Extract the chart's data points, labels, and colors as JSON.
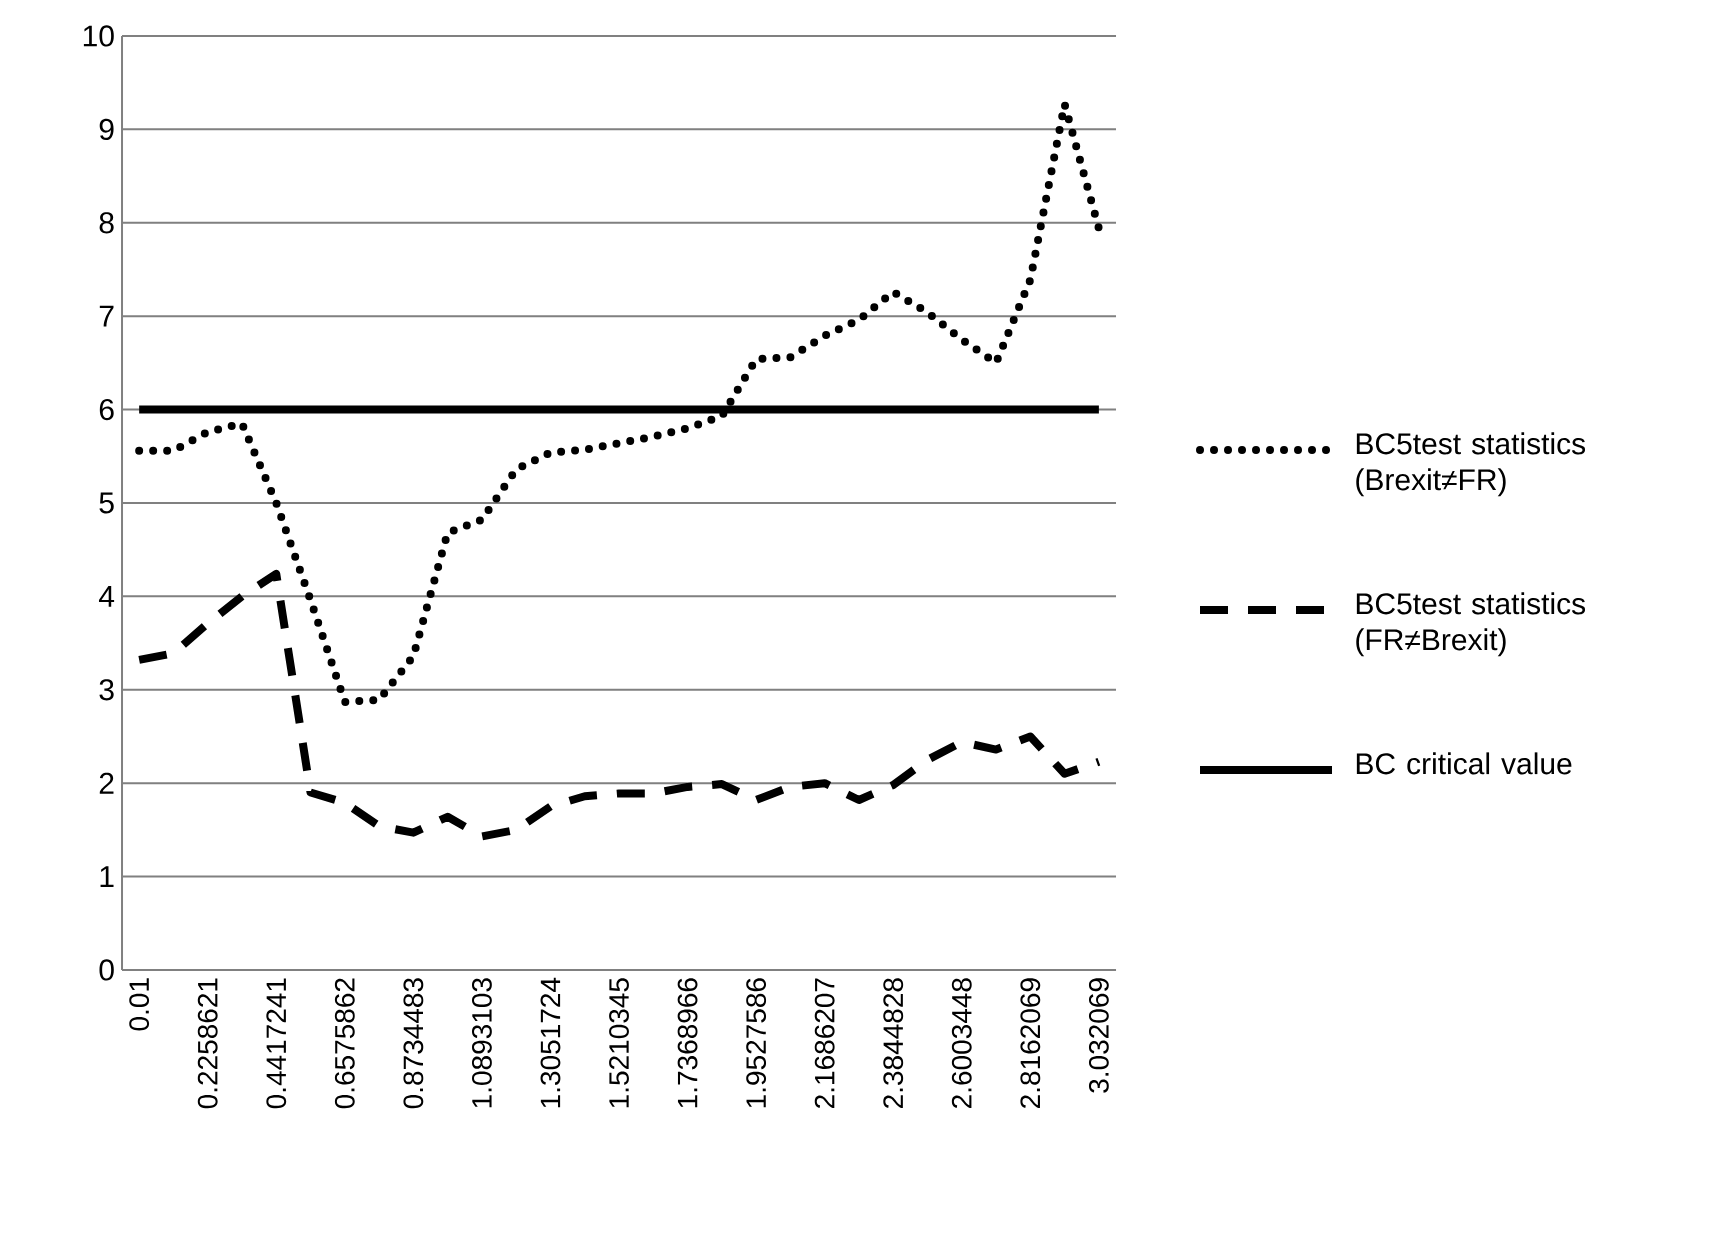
{
  "chart_data": {
    "type": "line",
    "categories": [
      "0.01",
      null,
      "0.2258621",
      null,
      "0.4417241",
      null,
      "0.6575862",
      null,
      "0.8734483",
      null,
      "1.0893103",
      null,
      "1.3051724",
      null,
      "1.5210345",
      null,
      "1.7368966",
      null,
      "1.9527586",
      null,
      "2.1686207",
      null,
      "2.3844828",
      null,
      "2.6003448",
      null,
      "2.8162069",
      null,
      "3.032069"
    ],
    "series": [
      {
        "name": "BC5test statistics (Brexit≠FR)",
        "color": "#000000",
        "line_style": "dotted",
        "values": [
          5.56,
          5.56,
          5.76,
          5.85,
          5.0,
          3.96,
          2.87,
          2.89,
          3.36,
          4.68,
          4.82,
          5.36,
          5.54,
          5.57,
          5.64,
          5.71,
          5.8,
          5.93,
          6.54,
          6.56,
          6.79,
          6.96,
          7.26,
          7.04,
          6.75,
          6.5,
          7.39,
          9.27,
          7.94
        ]
      },
      {
        "name": "BC5test statistics (FR≠Brexit)",
        "color": "#000000",
        "line_style": "dashed",
        "values": [
          3.32,
          3.39,
          3.71,
          4.0,
          4.24,
          1.9,
          1.79,
          1.54,
          1.47,
          1.64,
          1.43,
          1.5,
          1.75,
          1.86,
          1.89,
          1.89,
          1.96,
          1.99,
          1.82,
          1.96,
          2.0,
          1.82,
          1.98,
          2.25,
          2.44,
          2.36,
          2.5,
          2.1,
          2.23
        ]
      },
      {
        "name": "BC critical value",
        "color": "#000000",
        "line_style": "solid",
        "values": [
          6,
          6,
          6,
          6,
          6,
          6,
          6,
          6,
          6,
          6,
          6,
          6,
          6,
          6,
          6,
          6,
          6,
          6,
          6,
          6,
          6,
          6,
          6,
          6,
          6,
          6,
          6,
          6,
          6
        ]
      }
    ],
    "ylim": [
      0,
      10
    ],
    "yticks": [
      0,
      1,
      2,
      3,
      4,
      5,
      6,
      7,
      8,
      9,
      10
    ],
    "grid": "y",
    "legend": "right"
  }
}
